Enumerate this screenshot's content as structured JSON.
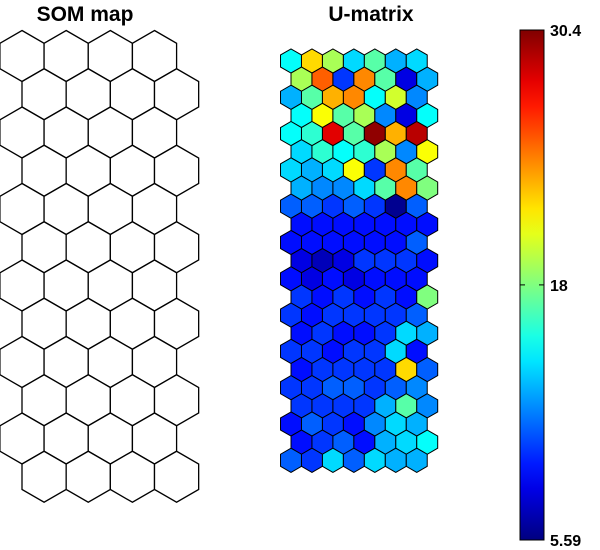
{
  "titles": {
    "left": "SOM map",
    "right": "U-matrix"
  },
  "colorbar": {
    "min": 5.59,
    "max": 30.4,
    "ticks": [
      {
        "value": 30.4,
        "label": "30.4"
      },
      {
        "value": 18,
        "label": "18"
      },
      {
        "value": 5.59,
        "label": "5.59"
      }
    ],
    "colormap": "jet"
  },
  "chart_data": [
    {
      "type": "heatmap",
      "title": "SOM map",
      "layout": "hexagonal",
      "rows": 12,
      "cols": 4,
      "fill": "none"
    },
    {
      "type": "heatmap",
      "title": "U-matrix",
      "layout": "hexagonal",
      "rows": 23,
      "cols": 7,
      "value_range": [
        5.59,
        30.4
      ],
      "values": [
        [
          15,
          22,
          19,
          14,
          17,
          13,
          14
        ],
        [
          19,
          25,
          10,
          24,
          17,
          8,
          13
        ],
        [
          13,
          17,
          23,
          24,
          15,
          20,
          12
        ],
        [
          15,
          21,
          17,
          19,
          12,
          8,
          15
        ],
        [
          15,
          16,
          28,
          17,
          30,
          23,
          29
        ],
        [
          14,
          16,
          15,
          16,
          19,
          12,
          21
        ],
        [
          14,
          13,
          14,
          21,
          10,
          24,
          17
        ],
        [
          13,
          12,
          12,
          14,
          17,
          24,
          18
        ],
        [
          11,
          11,
          10,
          11,
          10,
          6,
          11
        ],
        [
          9,
          9,
          9,
          9,
          9,
          9,
          9
        ],
        [
          9,
          9,
          9,
          9,
          9,
          9,
          11
        ],
        [
          8,
          7,
          8,
          10,
          10,
          10,
          9
        ],
        [
          9,
          8,
          9,
          8,
          9,
          9,
          9
        ],
        [
          10,
          9,
          10,
          9,
          10,
          9,
          18
        ],
        [
          10,
          9,
          10,
          10,
          10,
          10,
          11
        ],
        [
          9,
          10,
          9,
          9,
          10,
          14,
          13
        ],
        [
          10,
          10,
          9,
          10,
          10,
          14,
          9
        ],
        [
          9,
          10,
          10,
          10,
          10,
          22,
          11
        ],
        [
          10,
          10,
          11,
          11,
          10,
          11,
          12
        ],
        [
          10,
          10,
          10,
          10,
          13,
          17,
          12
        ],
        [
          9,
          11,
          10,
          9,
          12,
          14,
          13
        ],
        [
          9,
          10,
          11,
          9,
          13,
          14,
          15
        ],
        [
          11,
          10,
          14,
          11,
          14,
          13,
          13
        ]
      ]
    }
  ]
}
